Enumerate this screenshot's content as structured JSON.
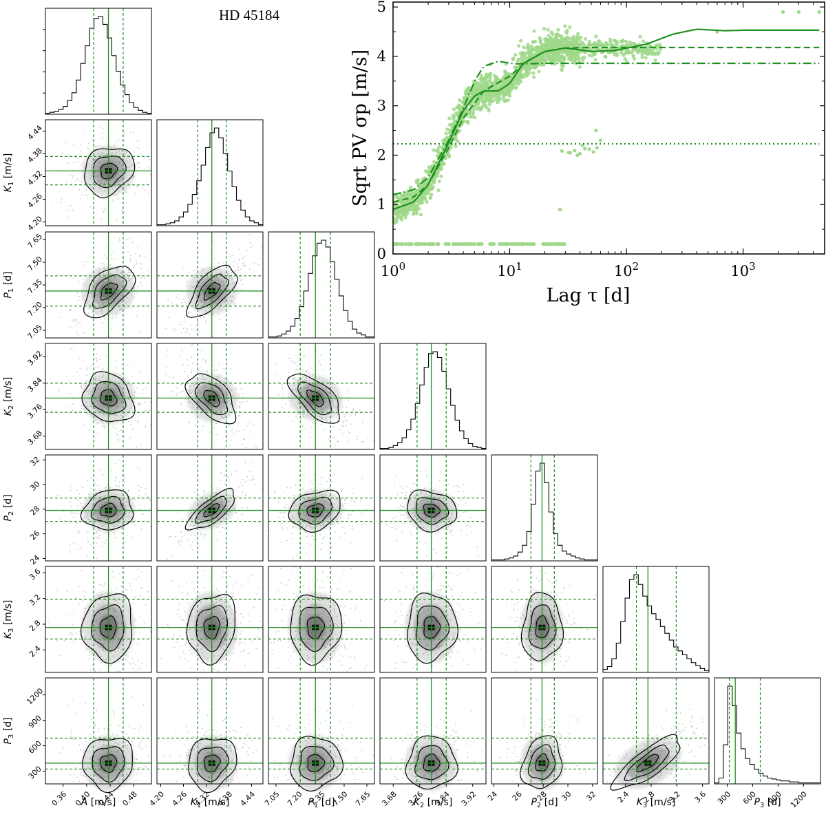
{
  "title": "HD 45184",
  "colors": {
    "green": "#1f8f1f",
    "light_green": "#9fd88a",
    "contour": "#000000",
    "density": "#555555"
  },
  "chart_data": [
    {
      "type": "corner",
      "title": "HD 45184",
      "parameters": [
        {
          "label": "A [m/s]",
          "symbol": "A",
          "unit": "[m/s]",
          "median": 0.437,
          "lower": 0.412,
          "upper": 0.462,
          "range": [
            0.33,
            0.51
          ],
          "ticks": [
            "0.36",
            "0.40",
            "0.44",
            "0.48"
          ],
          "tick_values": [
            0.36,
            0.4,
            0.44,
            0.48
          ]
        },
        {
          "label": "K1 [m/s]",
          "symbol": "K",
          "sub": "1",
          "unit": "[m/s]",
          "median": 4.335,
          "lower": 4.298,
          "upper": 4.373,
          "range": [
            4.19,
            4.47
          ],
          "ticks": [
            "4.20",
            "4.26",
            "4.32",
            "4.38",
            "4.44"
          ],
          "tick_values": [
            4.2,
            4.26,
            4.32,
            4.38,
            4.44
          ]
        },
        {
          "label": "P1 [d]",
          "symbol": "P",
          "sub": "1",
          "unit": "[d]",
          "median": 7.31,
          "lower": 7.21,
          "upper": 7.41,
          "range": [
            7.0,
            7.7
          ],
          "ticks": [
            "7.05",
            "7.20",
            "7.35",
            "7.50",
            "7.65"
          ],
          "tick_values": [
            7.05,
            7.2,
            7.35,
            7.5,
            7.65
          ]
        },
        {
          "label": "K2 [m/s]",
          "symbol": "K",
          "sub": "2",
          "unit": "[m/s]",
          "median": 3.795,
          "lower": 3.752,
          "upper": 3.84,
          "range": [
            3.64,
            3.96
          ],
          "ticks": [
            "3.68",
            "3.76",
            "3.84",
            "3.92"
          ],
          "tick_values": [
            3.68,
            3.76,
            3.84,
            3.92
          ]
        },
        {
          "label": "P2 [d]",
          "symbol": "P",
          "sub": "2",
          "unit": "[d]",
          "median": 27.9,
          "lower": 27.0,
          "upper": 28.9,
          "range": [
            23.8,
            32.4
          ],
          "ticks": [
            "24",
            "26",
            "28",
            "30",
            "32"
          ],
          "tick_values": [
            24,
            26,
            28,
            30,
            32
          ]
        },
        {
          "label": "K3 [m/s]",
          "symbol": "K",
          "sub": "3",
          "unit": "[m/s]",
          "median": 2.75,
          "lower": 2.57,
          "upper": 3.19,
          "range": [
            2.05,
            3.7
          ],
          "ticks": [
            "2.4",
            "2.8",
            "3.2",
            "3.6"
          ],
          "tick_values": [
            2.4,
            2.8,
            3.2,
            3.6
          ]
        },
        {
          "label": "P3 [d]",
          "symbol": "P",
          "sub": "3",
          "unit": "[d]",
          "median": 395,
          "lower": 325,
          "upper": 690,
          "range": [
            150,
            1400
          ],
          "ticks": [
            "300",
            "600",
            "900",
            "1200"
          ],
          "tick_values": [
            300,
            600,
            900,
            1200
          ]
        }
      ],
      "marginal_histograms": [
        [
          1,
          2,
          3,
          5,
          8,
          14,
          22,
          35,
          52,
          70,
          88,
          98,
          100,
          92,
          78,
          60,
          44,
          30,
          20,
          12,
          7,
          4,
          2,
          1
        ],
        [
          1,
          1,
          2,
          3,
          5,
          9,
          14,
          22,
          32,
          46,
          62,
          80,
          95,
          100,
          90,
          74,
          56,
          40,
          26,
          16,
          9,
          5,
          3,
          1
        ],
        [
          1,
          1,
          2,
          4,
          7,
          12,
          20,
          32,
          48,
          66,
          84,
          97,
          100,
          93,
          78,
          60,
          43,
          28,
          17,
          9,
          5,
          3,
          1,
          1
        ],
        [
          1,
          1,
          2,
          4,
          7,
          12,
          20,
          31,
          47,
          66,
          84,
          98,
          100,
          94,
          80,
          62,
          45,
          30,
          19,
          11,
          6,
          3,
          2,
          1
        ],
        [
          1,
          1,
          1,
          2,
          3,
          5,
          9,
          16,
          30,
          58,
          92,
          100,
          80,
          50,
          28,
          16,
          10,
          7,
          5,
          3,
          2,
          1,
          1,
          1
        ],
        [
          3,
          6,
          14,
          30,
          52,
          76,
          95,
          100,
          90,
          78,
          68,
          60,
          54,
          47,
          40,
          33,
          26,
          22,
          18,
          14,
          10,
          7,
          4,
          2
        ],
        [
          1,
          6,
          40,
          100,
          80,
          52,
          36,
          26,
          20,
          15,
          11,
          8,
          6,
          5,
          4,
          3,
          3,
          2,
          2,
          1,
          1,
          1,
          1,
          1
        ]
      ],
      "correlations": {
        "0-1": 0.2,
        "0-2": 0.55,
        "0-3": -0.2,
        "0-4": 0.1,
        "0-5": 0.05,
        "0-6": 0.05,
        "1-2": 0.65,
        "1-3": -0.55,
        "1-4": 0.75,
        "1-5": 0.15,
        "1-6": 0.15,
        "2-3": -0.65,
        "2-4": 0.25,
        "2-5": 0.05,
        "2-6": 0.05,
        "3-4": -0.15,
        "3-5": 0.05,
        "3-6": 0.05,
        "4-5": 0.05,
        "4-6": 0.2,
        "5-6": 0.8
      }
    },
    {
      "type": "scatter",
      "title": "",
      "xlabel": "Lag τ [d]",
      "ylabel": "Sqrt PV σp [m/s]",
      "xscale": "log",
      "xlim": [
        1,
        5000
      ],
      "ylim": [
        0,
        5.1
      ],
      "xticks": [
        "10^0",
        "10^1",
        "10^2",
        "10^3"
      ],
      "yticks": [
        "0",
        "1",
        "2",
        "3",
        "4",
        "5"
      ],
      "series": [
        {
          "name": "solid",
          "style": "solid",
          "x": [
            1,
            1.5,
            2,
            3,
            4,
            5,
            6,
            8,
            10,
            13,
            20,
            30,
            50,
            80,
            150,
            250,
            400,
            700,
            1000,
            4500
          ],
          "y": [
            0.9,
            1.05,
            1.4,
            2.25,
            2.9,
            3.2,
            3.3,
            3.3,
            3.45,
            3.85,
            4.1,
            4.17,
            4.1,
            4.12,
            4.25,
            4.45,
            4.55,
            4.52,
            4.53,
            4.53
          ]
        },
        {
          "name": "dashed",
          "style": "dashed",
          "x": [
            1,
            1.5,
            2,
            3,
            4,
            6,
            10,
            14,
            20,
            30,
            50,
            100,
            300,
            1000,
            4500
          ],
          "y": [
            1.05,
            1.15,
            1.4,
            2.15,
            2.75,
            3.3,
            3.6,
            3.9,
            4.1,
            4.17,
            4.18,
            4.18,
            4.18,
            4.18,
            4.18
          ]
        },
        {
          "name": "dashdot",
          "style": "dashdot",
          "x": [
            1,
            1.5,
            2,
            3,
            4,
            5,
            6,
            8,
            11,
            15,
            20,
            40,
            100,
            4500
          ],
          "y": [
            1.2,
            1.3,
            1.55,
            2.3,
            2.95,
            3.5,
            3.8,
            3.9,
            3.85,
            3.85,
            3.86,
            3.86,
            3.86,
            3.86
          ]
        },
        {
          "name": "dotted",
          "style": "dotted",
          "x": [
            1,
            4500
          ],
          "y": [
            2.23,
            2.23
          ]
        }
      ],
      "scatter_groups": [
        {
          "name": "main",
          "x_range": [
            1,
            40
          ],
          "shape": "rising"
        },
        {
          "name": "zero_floor",
          "y": 0.2,
          "x_range": [
            1,
            30
          ]
        },
        {
          "name": "tail",
          "x": [
            33,
            38,
            42,
            55,
            60,
            90,
            130,
            2200,
            3000,
            4500,
            600
          ],
          "y": [
            2.05,
            2.0,
            2.2,
            2.5,
            2.3,
            4.3,
            4.2,
            4.9,
            4.9,
            4.9,
            4.5
          ]
        }
      ]
    }
  ]
}
